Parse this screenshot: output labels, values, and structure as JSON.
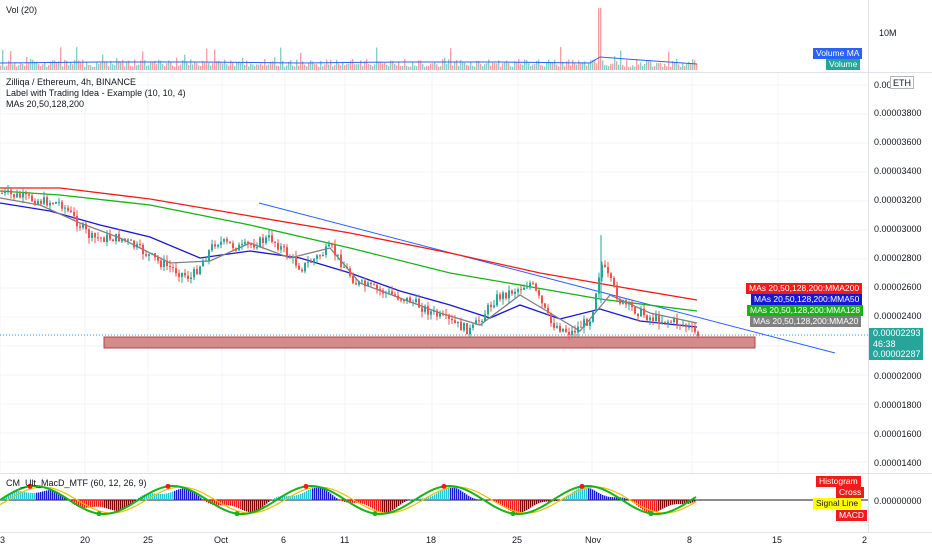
{
  "volume_pane": {
    "title": "Vol (20)",
    "axis_label": "10M",
    "tags": [
      {
        "text": "Volume MA",
        "color": "#2962ff"
      },
      {
        "text": "Volume",
        "color": "#26a69a"
      }
    ]
  },
  "price_pane": {
    "symbol_line": "Zilliqa / Ethereum, 4h, BINANCE",
    "indicator_line_1": "Label with Trading Idea - Example (10, 10, 4)",
    "indicator_line_2": "MAs 20,50,128,200",
    "currency_badge": "ETH",
    "price_levels": [
      "0.00003800",
      "0.00003600",
      "0.00003400",
      "0.00003200",
      "0.00003000",
      "0.00002800",
      "0.00002600",
      "0.00002400",
      "0.00002000",
      "0.00001800",
      "0.00001600",
      "0.00001400"
    ],
    "top_partial_label": "0.0000",
    "last_price": "0.00002293",
    "countdown": "46:38",
    "second_price": "0.00002287",
    "ma_tags": [
      {
        "text": "MAs 20,50,128,200:MMA200",
        "color": "#f21b1b"
      },
      {
        "text": "MAs 20,50,128,200:MMA50",
        "color": "#1717d6"
      },
      {
        "text": "MAs 20,50,128,200:MMA128",
        "color": "#17b317"
      },
      {
        "text": "MAs 20,50,128,200:MMA20",
        "color": "#808080"
      }
    ]
  },
  "macd_pane": {
    "title": "CM_Ult_MacD_MTF (60, 12, 26, 9)",
    "zero_label": "0.00000000",
    "tags": [
      {
        "text": "Histogram",
        "color": "#f21b1b"
      },
      {
        "text": "Cross",
        "color": "#f21b1b"
      },
      {
        "text": "Signal Line",
        "color": "#ffff00"
      },
      {
        "text": "MACD",
        "color": "#f21b1b"
      }
    ]
  },
  "time_axis": {
    "labels": [
      "3",
      "20",
      "25",
      "Oct",
      "6",
      "11",
      "18",
      "25",
      "Nov",
      "8",
      "15",
      "2"
    ]
  },
  "colors": {
    "up": "#26a69a",
    "down": "#ef5350",
    "ma200": "#f21b1b",
    "ma128": "#17b317",
    "ma50": "#1717d6",
    "ma20": "#808080",
    "trendline": "#2962ff",
    "zone_fill": "#c86464",
    "price_line": "#2196f3"
  }
}
